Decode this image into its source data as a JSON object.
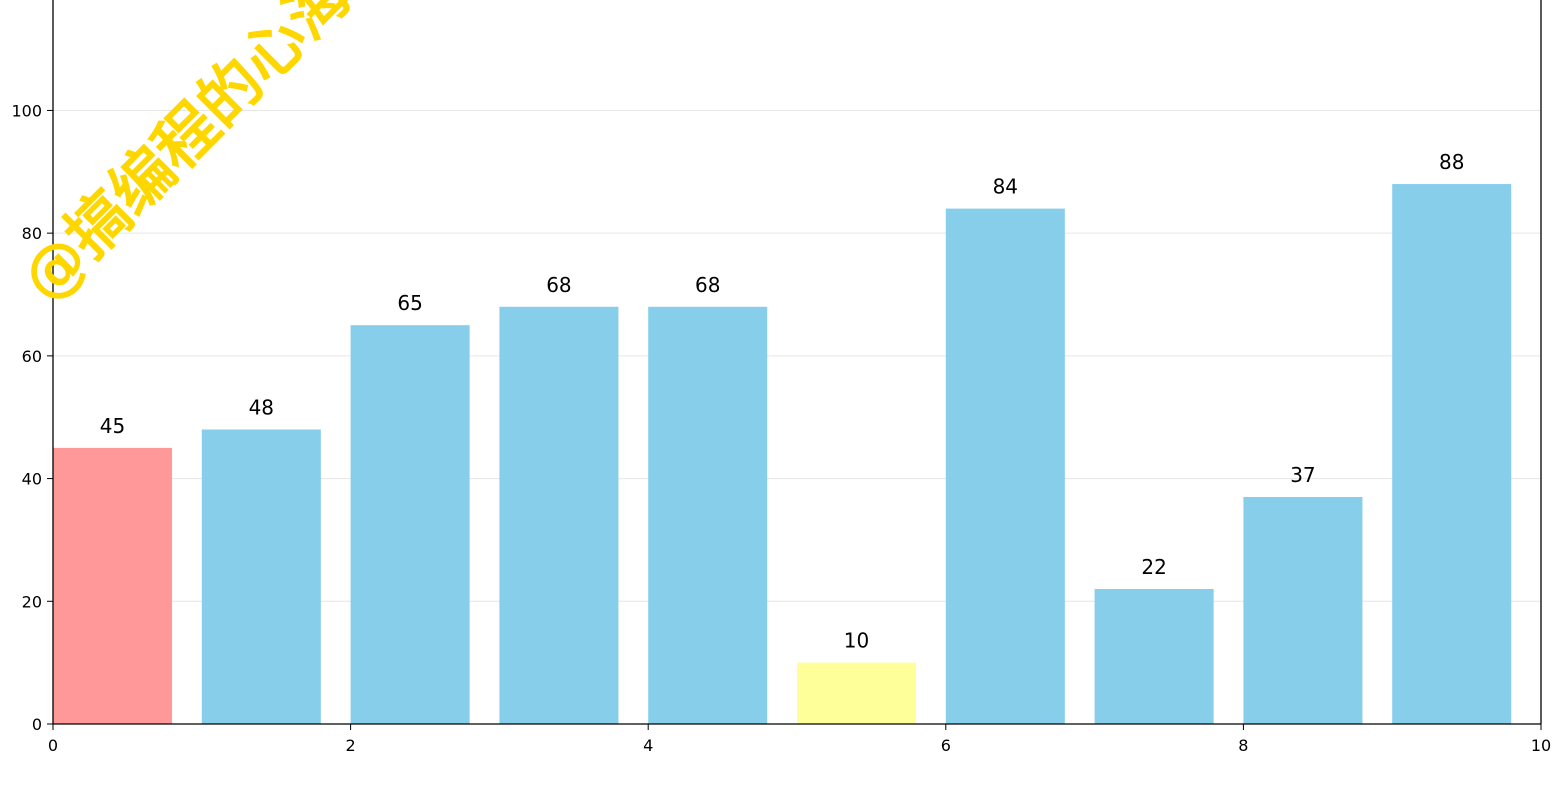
{
  "chart_data": {
    "type": "bar",
    "x": [
      0,
      1,
      2,
      3,
      4,
      5,
      6,
      7,
      8,
      9
    ],
    "values": [
      45,
      48,
      65,
      68,
      68,
      10,
      84,
      22,
      37,
      88
    ],
    "bar_colors": [
      "#FF9999",
      "#87CEEB",
      "#87CEEB",
      "#87CEEB",
      "#87CEEB",
      "#FFFF99",
      "#87CEEB",
      "#87CEEB",
      "#87CEEB",
      "#87CEEB"
    ],
    "bar_width": 0.8,
    "xlim": [
      0,
      10
    ],
    "ylim": [
      0,
      118
    ],
    "xticks": [
      0,
      2,
      4,
      6,
      8,
      10
    ],
    "yticks": [
      0,
      20,
      40,
      60,
      80,
      100
    ],
    "grid": "y",
    "title": "",
    "xlabel": "",
    "ylabel": ""
  },
  "watermark": {
    "text": "@搞编程的心海",
    "color": "#FFD700"
  }
}
